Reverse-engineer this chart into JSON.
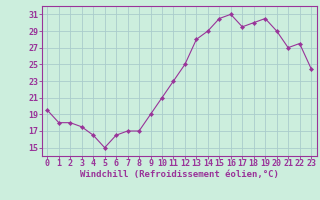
{
  "x": [
    0,
    1,
    2,
    3,
    4,
    5,
    6,
    7,
    8,
    9,
    10,
    11,
    12,
    13,
    14,
    15,
    16,
    17,
    18,
    19,
    20,
    21,
    22,
    23
  ],
  "y": [
    19.5,
    18.0,
    18.0,
    17.5,
    16.5,
    15.0,
    16.5,
    17.0,
    17.0,
    19.0,
    21.0,
    23.0,
    25.0,
    28.0,
    29.0,
    30.5,
    31.0,
    29.5,
    30.0,
    30.5,
    29.0,
    27.0,
    27.5,
    24.5
  ],
  "line_color": "#993399",
  "marker": "D",
  "marker_size": 2.2,
  "bg_color": "#cceedd",
  "grid_color": "#aacccc",
  "xlabel": "Windchill (Refroidissement éolien,°C)",
  "ylabel": "",
  "title": "",
  "xlim": [
    -0.5,
    23.5
  ],
  "ylim": [
    14.0,
    32.0
  ],
  "yticks": [
    15,
    17,
    19,
    21,
    23,
    25,
    27,
    29,
    31
  ],
  "xtick_labels": [
    "0",
    "1",
    "2",
    "3",
    "4",
    "5",
    "6",
    "7",
    "8",
    "9",
    "10",
    "11",
    "12",
    "13",
    "14",
    "15",
    "16",
    "17",
    "18",
    "19",
    "20",
    "21",
    "22",
    "23"
  ],
  "axis_color": "#993399",
  "tick_color": "#993399",
  "label_fontsize": 6.5,
  "tick_fontsize": 6.0,
  "linewidth": 0.8
}
